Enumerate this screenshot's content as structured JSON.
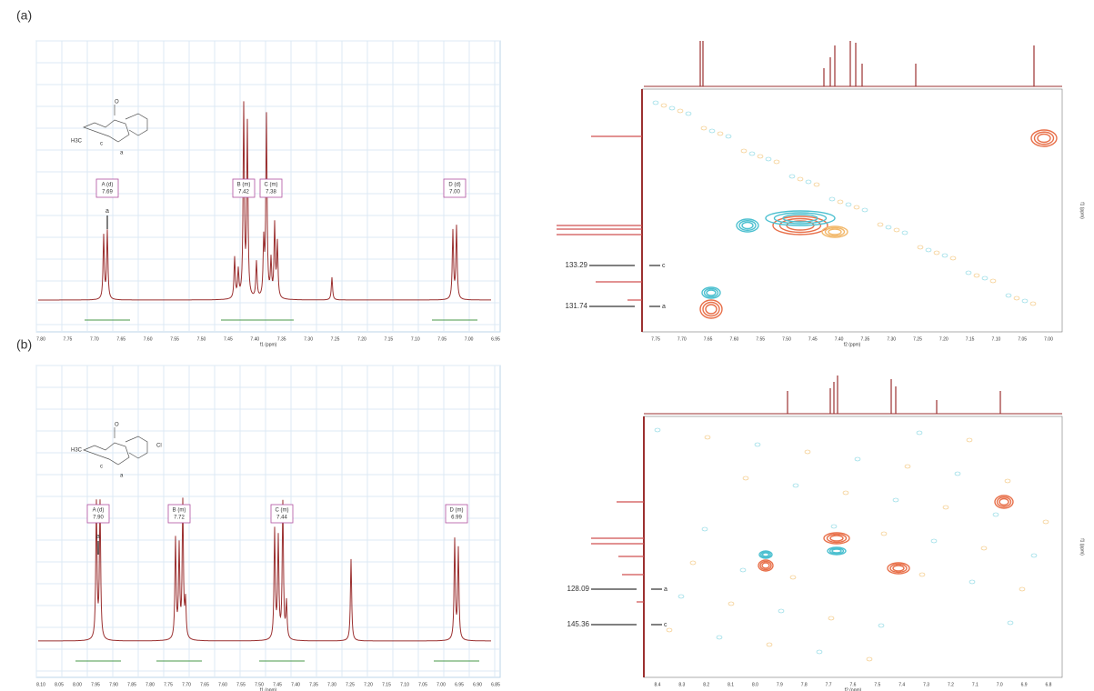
{
  "panels": [
    {
      "label": "(a)",
      "spectrum": {
        "x_axis_label": "f1 (ppm)",
        "x_ticks": [
          "7.80",
          "7.75",
          "7.70",
          "7.65",
          "7.60",
          "7.55",
          "7.50",
          "7.45",
          "7.40",
          "7.35",
          "7.30",
          "7.25",
          "7.20",
          "7.15",
          "7.10",
          "7.05",
          "7.00",
          "6.95"
        ],
        "peaks": [
          {
            "name": "A (d)",
            "shift": "7.69"
          },
          {
            "name": "B (m)",
            "shift": "7.42"
          },
          {
            "name": "C (m)",
            "shift": "7.38"
          },
          {
            "name": "D (d)",
            "shift": "7.00"
          }
        ],
        "marker": "a"
      },
      "structure": {
        "methyl": "H3C",
        "atoms": [
          "O",
          "c",
          "a"
        ]
      },
      "hsqc": {
        "x_axis_label": "f2 (ppm)",
        "y_axis_label": "f1 (ppm)",
        "x_ticks": [
          "7.75",
          "7.70",
          "7.65",
          "7.60",
          "7.55",
          "7.50",
          "7.45",
          "7.40",
          "7.35",
          "7.30",
          "7.25",
          "7.20",
          "7.15",
          "7.10",
          "7.05",
          "7.00"
        ],
        "annotations": [
          {
            "value": "133.29",
            "atom": "c"
          },
          {
            "value": "131.74",
            "atom": "a"
          }
        ]
      }
    },
    {
      "label": "(b)",
      "spectrum": {
        "x_axis_label": "f1 (ppm)",
        "x_ticks": [
          "8.10",
          "8.05",
          "8.00",
          "7.95",
          "7.90",
          "7.85",
          "7.80",
          "7.75",
          "7.70",
          "7.65",
          "7.60",
          "7.55",
          "7.50",
          "7.45",
          "7.40",
          "7.35",
          "7.30",
          "7.25",
          "7.20",
          "7.15",
          "7.10",
          "7.05",
          "7.00",
          "6.95",
          "6.90",
          "6.85"
        ],
        "peaks": [
          {
            "name": "A (d)",
            "shift": "7.90"
          },
          {
            "name": "B (m)",
            "shift": "7.72"
          },
          {
            "name": "C (m)",
            "shift": "7.44"
          },
          {
            "name": "D (m)",
            "shift": "6.99"
          }
        ],
        "marker": "a"
      },
      "structure": {
        "methyl": "H3C",
        "atoms": [
          "O",
          "c",
          "a",
          "Cl"
        ]
      },
      "hsqc": {
        "x_axis_label": "f2 (ppm)",
        "y_axis_label": "f1 (ppm)",
        "x_ticks": [
          "8.4",
          "8.3",
          "8.2",
          "8.1",
          "8.0",
          "7.9",
          "7.8",
          "7.7",
          "7.6",
          "7.5",
          "7.4",
          "7.3",
          "7.2",
          "7.1",
          "7.0",
          "6.9",
          "6.8"
        ],
        "annotations": [
          {
            "value": "128.09",
            "atom": "a"
          },
          {
            "value": "145.36",
            "atom": "c"
          }
        ]
      }
    }
  ]
}
